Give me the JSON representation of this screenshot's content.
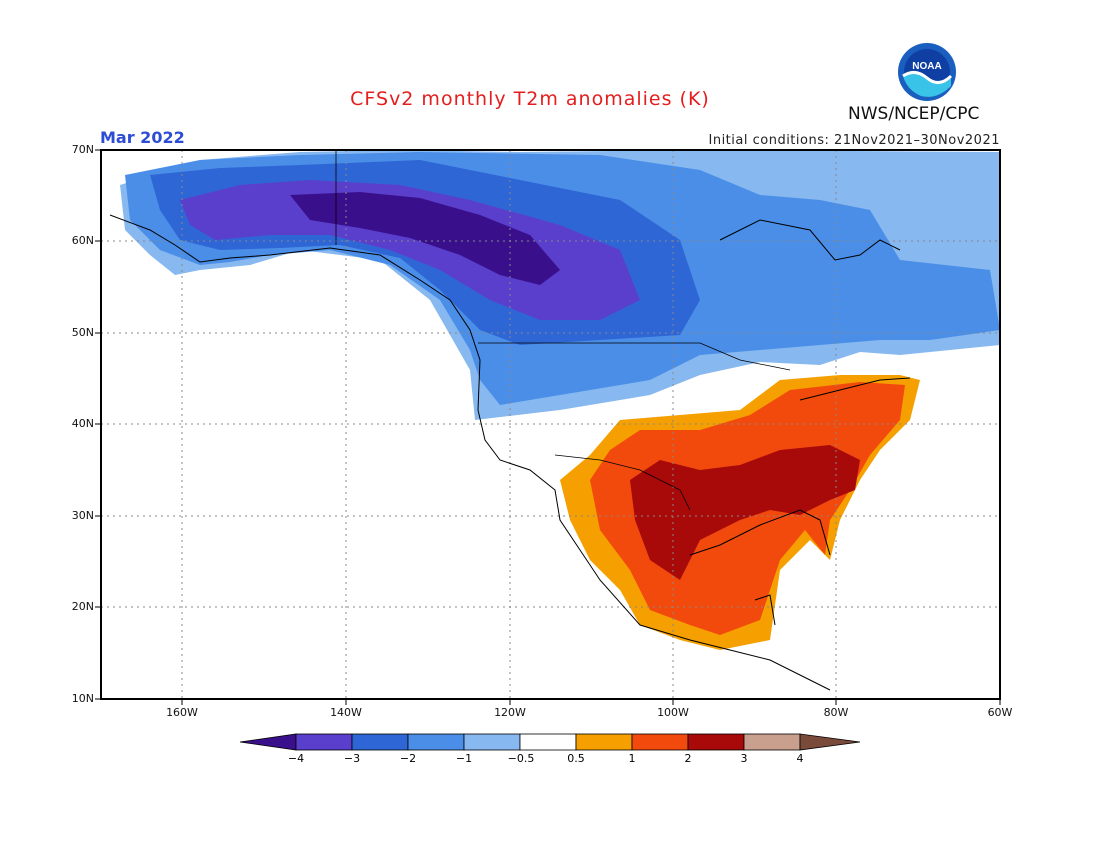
{
  "title": "CFSv2 monthly T2m anomalies (K)",
  "organization": "NWS/NCEP/CPC",
  "logo_text": "NOAA",
  "valid_month": "Mar 2022",
  "initial_conditions": "Initial conditions: 21Nov2021–30Nov2021",
  "latitude_labels": [
    "70N",
    "60N",
    "50N",
    "40N",
    "30N",
    "20N",
    "10N"
  ],
  "longitude_labels": [
    "160W",
    "140W",
    "120W",
    "100W",
    "80W",
    "60W"
  ],
  "colorbar": {
    "tick_labels": [
      "−4",
      "−3",
      "−2",
      "−1",
      "−0.5",
      "0.5",
      "1",
      "2",
      "3",
      "4"
    ],
    "colors": [
      "#3a0f8c",
      "#5a3fcc",
      "#2f66d6",
      "#4a8ee8",
      "#87b8f0",
      "#ffffff",
      "#f5a000",
      "#f24a0c",
      "#a80a0a",
      "#c9a08d",
      "#7a4a3a"
    ]
  },
  "colors": {
    "title": "#e41d1d",
    "month": "#2c4cd6"
  }
}
